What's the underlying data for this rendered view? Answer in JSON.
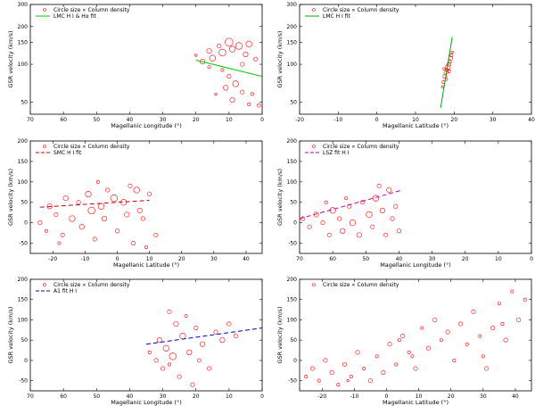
{
  "chart_data": [
    {
      "type": "scatter",
      "xlabel": "Magellanic Longitude (°)",
      "ylabel": "GSR velocity (km/s)",
      "xlim": [
        70,
        0
      ],
      "ylim": [
        40,
        300
      ],
      "log_y": true,
      "xticks": [
        70,
        60,
        50,
        40,
        30,
        20,
        10,
        0
      ],
      "yticks": [
        50,
        100,
        150,
        200,
        300
      ],
      "ytick_labels": [
        "50",
        "100",
        "150",
        "200",
        "300"
      ],
      "legend": {
        "position": "top-left",
        "markers": "Circle size ∝ Column density",
        "fit": "LMC H I & Hα fit"
      },
      "fit_line": {
        "color": "#00cc00",
        "x": [
          20,
          0
        ],
        "y": [
          108,
          80
        ]
      },
      "points": [
        {
          "x": 20,
          "y": 118,
          "r": 1.2
        },
        {
          "x": 18,
          "y": 105,
          "r": 2.5
        },
        {
          "x": 16,
          "y": 128,
          "r": 2.5
        },
        {
          "x": 15,
          "y": 112,
          "r": 3
        },
        {
          "x": 13,
          "y": 140,
          "r": 2
        },
        {
          "x": 12,
          "y": 124,
          "r": 3.5
        },
        {
          "x": 10,
          "y": 150,
          "r": 4
        },
        {
          "x": 9,
          "y": 132,
          "r": 3
        },
        {
          "x": 7,
          "y": 140,
          "r": 3.5
        },
        {
          "x": 5,
          "y": 120,
          "r": 2.5
        },
        {
          "x": 4,
          "y": 145,
          "r": 3
        },
        {
          "x": 2,
          "y": 110,
          "r": 2
        },
        {
          "x": 12,
          "y": 90,
          "r": 1.5
        },
        {
          "x": 10,
          "y": 80,
          "r": 2
        },
        {
          "x": 8,
          "y": 70,
          "r": 3
        },
        {
          "x": 11,
          "y": 65,
          "r": 2.5
        },
        {
          "x": 6,
          "y": 60,
          "r": 2
        },
        {
          "x": 3,
          "y": 58,
          "r": 1.5
        },
        {
          "x": 14,
          "y": 58,
          "r": 1.2
        },
        {
          "x": 9,
          "y": 52,
          "r": 2.5
        },
        {
          "x": 4,
          "y": 48,
          "r": 1.5
        },
        {
          "x": 1,
          "y": 47,
          "r": 1.8
        },
        {
          "x": 6,
          "y": 100,
          "r": 2
        },
        {
          "x": 16,
          "y": 95,
          "r": 1.5
        }
      ]
    },
    {
      "type": "scatter",
      "xlabel": "Magellanic Latitude (°)",
      "ylabel": "GSR velocity (km/s)",
      "xlim": [
        -20,
        40
      ],
      "ylim": [
        40,
        300
      ],
      "log_y": true,
      "xticks": [
        -20,
        -10,
        0,
        10,
        20,
        30,
        40
      ],
      "yticks": [
        50,
        100,
        150,
        200,
        300
      ],
      "ytick_labels": [
        "50",
        "100",
        "150",
        "200",
        "300"
      ],
      "legend": {
        "position": "top-left",
        "markers": "Circle size ∝ Column density",
        "fit": "LMC H I fit"
      },
      "fit_line": {
        "color": "#00aa00",
        "x": [
          16.5,
          19.5
        ],
        "y": [
          45,
          165
        ]
      },
      "points": [
        {
          "x": 17.2,
          "y": 72,
          "r": 1.5
        },
        {
          "x": 17.6,
          "y": 80,
          "r": 2
        },
        {
          "x": 17.9,
          "y": 86,
          "r": 2
        },
        {
          "x": 18.2,
          "y": 90,
          "r": 1.5
        },
        {
          "x": 18.4,
          "y": 95,
          "r": 2.5
        },
        {
          "x": 18.6,
          "y": 100,
          "r": 2
        },
        {
          "x": 18.9,
          "y": 105,
          "r": 1.5
        },
        {
          "x": 19.1,
          "y": 112,
          "r": 2
        },
        {
          "x": 19.3,
          "y": 118,
          "r": 1.5
        },
        {
          "x": 17.0,
          "y": 66,
          "r": 1.2
        },
        {
          "x": 18.0,
          "y": 76,
          "r": 1.2
        },
        {
          "x": 18.7,
          "y": 88,
          "r": 1.5
        },
        {
          "x": 19.5,
          "y": 125,
          "r": 1.2
        },
        {
          "x": 17.4,
          "y": 92,
          "r": 1.2
        }
      ]
    },
    {
      "type": "scatter",
      "xlabel": "Magellanic Latitude (°)",
      "ylabel": "GSR velocity (km/s)",
      "xlim": [
        -27,
        45
      ],
      "ylim": [
        -75,
        200
      ],
      "xticks": [
        -20,
        -10,
        0,
        10,
        20,
        30,
        40
      ],
      "yticks": [
        -50,
        0,
        50,
        100,
        150,
        200
      ],
      "legend": {
        "position": "top-left",
        "markers": "Circle size ∝ Column density",
        "fit": "SMC H I fit"
      },
      "fit_line": {
        "color": "#cc0000",
        "dashed": true,
        "x": [
          -24,
          10
        ],
        "y": [
          38,
          55
        ]
      },
      "points": [
        {
          "x": -24,
          "y": 0,
          "r": 2
        },
        {
          "x": -22,
          "y": -20,
          "r": 1.5
        },
        {
          "x": -21,
          "y": 40,
          "r": 2.5
        },
        {
          "x": -19,
          "y": 20,
          "r": 2
        },
        {
          "x": -17,
          "y": -30,
          "r": 2
        },
        {
          "x": -16,
          "y": 60,
          "r": 2.5
        },
        {
          "x": -14,
          "y": 10,
          "r": 3
        },
        {
          "x": -12,
          "y": 50,
          "r": 2
        },
        {
          "x": -11,
          "y": -10,
          "r": 2.5
        },
        {
          "x": -9,
          "y": 70,
          "r": 3
        },
        {
          "x": -8,
          "y": 30,
          "r": 3.5
        },
        {
          "x": -7,
          "y": -40,
          "r": 2
        },
        {
          "x": -5,
          "y": 40,
          "r": 3
        },
        {
          "x": -4,
          "y": 10,
          "r": 2.5
        },
        {
          "x": -3,
          "y": 80,
          "r": 2
        },
        {
          "x": -1,
          "y": 60,
          "r": 3.5
        },
        {
          "x": 0,
          "y": -20,
          "r": 2
        },
        {
          "x": 2,
          "y": 50,
          "r": 3
        },
        {
          "x": 3,
          "y": 20,
          "r": 2.5
        },
        {
          "x": 4,
          "y": 90,
          "r": 2
        },
        {
          "x": 5,
          "y": -50,
          "r": 2
        },
        {
          "x": 6,
          "y": 80,
          "r": 3
        },
        {
          "x": 7,
          "y": 30,
          "r": 2.5
        },
        {
          "x": 8,
          "y": 10,
          "r": 2
        },
        {
          "x": 9,
          "y": -60,
          "r": 1.5
        },
        {
          "x": 10,
          "y": 70,
          "r": 2
        },
        {
          "x": 12,
          "y": -30,
          "r": 2
        },
        {
          "x": -6,
          "y": 100,
          "r": 1.5
        },
        {
          "x": -18,
          "y": -50,
          "r": 1.5
        }
      ]
    },
    {
      "type": "scatter",
      "xlabel": "Magellanic Longitude (°)",
      "ylabel": "GSR velocity (km/s)",
      "xlim": [
        70,
        0
      ],
      "ylim": [
        -75,
        200
      ],
      "xticks": [
        70,
        60,
        50,
        40,
        30,
        20,
        10,
        0
      ],
      "yticks": [
        -50,
        0,
        50,
        100,
        150,
        200
      ],
      "legend": {
        "position": "top-left",
        "markers": "Circle size ∝ Column density",
        "fit": "LSZ fit H I"
      },
      "fit_line": {
        "color": "#bb00bb",
        "dashed": true,
        "x": [
          70,
          39
        ],
        "y": [
          10,
          80
        ]
      },
      "points": [
        {
          "x": 69,
          "y": 10,
          "r": 2
        },
        {
          "x": 67,
          "y": -10,
          "r": 2
        },
        {
          "x": 65,
          "y": 20,
          "r": 2.5
        },
        {
          "x": 63,
          "y": 0,
          "r": 2
        },
        {
          "x": 61,
          "y": -30,
          "r": 2
        },
        {
          "x": 60,
          "y": 30,
          "r": 3
        },
        {
          "x": 58,
          "y": 10,
          "r": 2
        },
        {
          "x": 57,
          "y": -20,
          "r": 2.5
        },
        {
          "x": 55,
          "y": 40,
          "r": 2
        },
        {
          "x": 54,
          "y": 0,
          "r": 3
        },
        {
          "x": 52,
          "y": -30,
          "r": 2.5
        },
        {
          "x": 51,
          "y": 50,
          "r": 2
        },
        {
          "x": 49,
          "y": 20,
          "r": 3
        },
        {
          "x": 48,
          "y": -10,
          "r": 2
        },
        {
          "x": 47,
          "y": 60,
          "r": 3
        },
        {
          "x": 45,
          "y": 30,
          "r": 2.5
        },
        {
          "x": 44,
          "y": -30,
          "r": 2
        },
        {
          "x": 43,
          "y": 80,
          "r": 2.5
        },
        {
          "x": 42,
          "y": 10,
          "r": 2
        },
        {
          "x": 41,
          "y": 40,
          "r": 2
        },
        {
          "x": 40,
          "y": -20,
          "r": 2
        },
        {
          "x": 46,
          "y": 90,
          "r": 2
        },
        {
          "x": 56,
          "y": 60,
          "r": 1.5
        },
        {
          "x": 62,
          "y": 50,
          "r": 1.5
        }
      ]
    },
    {
      "type": "scatter",
      "xlabel": "Magellanic Longitude (°)",
      "ylabel": "GSR velocity (km/s)",
      "xlim": [
        70,
        0
      ],
      "ylim": [
        -75,
        200
      ],
      "xticks": [
        70,
        60,
        50,
        40,
        30,
        20,
        10,
        0
      ],
      "yticks": [
        -50,
        0,
        50,
        100,
        150,
        200
      ],
      "legend": {
        "position": "top-left",
        "markers": "Circle size ∝ Column density",
        "fit": "A1 fit H I"
      },
      "fit_line": {
        "color": "#0000cc",
        "dashed": true,
        "x": [
          35,
          0
        ],
        "y": [
          40,
          80
        ]
      },
      "points": [
        {
          "x": 34,
          "y": 20,
          "r": 1.5
        },
        {
          "x": 32,
          "y": 0,
          "r": 2
        },
        {
          "x": 31,
          "y": 50,
          "r": 2.5
        },
        {
          "x": 30,
          "y": -20,
          "r": 2
        },
        {
          "x": 29,
          "y": 30,
          "r": 3
        },
        {
          "x": 28,
          "y": 120,
          "r": 2
        },
        {
          "x": 27,
          "y": 10,
          "r": 3.5
        },
        {
          "x": 26,
          "y": 90,
          "r": 2.5
        },
        {
          "x": 25,
          "y": -40,
          "r": 2
        },
        {
          "x": 24,
          "y": 60,
          "r": 3
        },
        {
          "x": 22,
          "y": 20,
          "r": 2.5
        },
        {
          "x": 21,
          "y": -60,
          "r": 2
        },
        {
          "x": 20,
          "y": 80,
          "r": 2
        },
        {
          "x": 18,
          "y": 40,
          "r": 2.5
        },
        {
          "x": 16,
          "y": -20,
          "r": 2
        },
        {
          "x": 14,
          "y": 70,
          "r": 2
        },
        {
          "x": 12,
          "y": 50,
          "r": 2.5
        },
        {
          "x": 10,
          "y": 90,
          "r": 2
        },
        {
          "x": 8,
          "y": 60,
          "r": 2
        },
        {
          "x": 28,
          "y": -10,
          "r": 1.5
        },
        {
          "x": 23,
          "y": 110,
          "r": 1.5
        },
        {
          "x": 19,
          "y": 0,
          "r": 1.8
        }
      ]
    },
    {
      "type": "scatter",
      "xlabel": "Magellanic Latitude (°)",
      "ylabel": "GSR velocity (km/s)",
      "xlim": [
        -27,
        45
      ],
      "ylim": [
        -75,
        200
      ],
      "xticks": [
        -20,
        -10,
        0,
        10,
        20,
        30,
        40
      ],
      "yticks": [
        -50,
        0,
        50,
        100,
        150,
        200
      ],
      "legend": {
        "position": "top-left",
        "markers": "Circle size ∝ Column density"
      },
      "points": [
        {
          "x": -25,
          "y": -40,
          "r": 1.5
        },
        {
          "x": -23,
          "y": -20,
          "r": 2
        },
        {
          "x": -21,
          "y": -50,
          "r": 1.5
        },
        {
          "x": -19,
          "y": 0,
          "r": 2
        },
        {
          "x": -17,
          "y": -30,
          "r": 2
        },
        {
          "x": -15,
          "y": -60,
          "r": 1.5
        },
        {
          "x": -13,
          "y": -10,
          "r": 2
        },
        {
          "x": -11,
          "y": -40,
          "r": 1.5
        },
        {
          "x": -9,
          "y": 20,
          "r": 2
        },
        {
          "x": -7,
          "y": -20,
          "r": 1.5
        },
        {
          "x": -5,
          "y": -50,
          "r": 2
        },
        {
          "x": -3,
          "y": 10,
          "r": 1.5
        },
        {
          "x": -1,
          "y": -30,
          "r": 2
        },
        {
          "x": 1,
          "y": 40,
          "r": 2
        },
        {
          "x": 3,
          "y": -10,
          "r": 1.5
        },
        {
          "x": 5,
          "y": 60,
          "r": 2
        },
        {
          "x": 7,
          "y": 20,
          "r": 1.5
        },
        {
          "x": 9,
          "y": -20,
          "r": 2
        },
        {
          "x": 11,
          "y": 80,
          "r": 1.5
        },
        {
          "x": 13,
          "y": 30,
          "r": 2
        },
        {
          "x": 15,
          "y": 100,
          "r": 2
        },
        {
          "x": 17,
          "y": 50,
          "r": 1.5
        },
        {
          "x": 19,
          "y": 70,
          "r": 2
        },
        {
          "x": 21,
          "y": 0,
          "r": 1.5
        },
        {
          "x": 23,
          "y": 90,
          "r": 2
        },
        {
          "x": 25,
          "y": 40,
          "r": 1.5
        },
        {
          "x": 27,
          "y": 120,
          "r": 2
        },
        {
          "x": 29,
          "y": 60,
          "r": 1.5
        },
        {
          "x": 31,
          "y": -20,
          "r": 2
        },
        {
          "x": 33,
          "y": 80,
          "r": 2
        },
        {
          "x": 35,
          "y": 140,
          "r": 1.5
        },
        {
          "x": 37,
          "y": 50,
          "r": 2
        },
        {
          "x": 39,
          "y": 170,
          "r": 1.5
        },
        {
          "x": 41,
          "y": 100,
          "r": 2
        },
        {
          "x": 43,
          "y": 150,
          "r": 1.5
        },
        {
          "x": 8,
          "y": 10,
          "r": 1.5
        },
        {
          "x": 4,
          "y": 50,
          "r": 1.5
        },
        {
          "x": -12,
          "y": -50,
          "r": 1.2
        },
        {
          "x": 30,
          "y": 10,
          "r": 1.5
        },
        {
          "x": 36,
          "y": 90,
          "r": 1.5
        }
      ]
    }
  ]
}
